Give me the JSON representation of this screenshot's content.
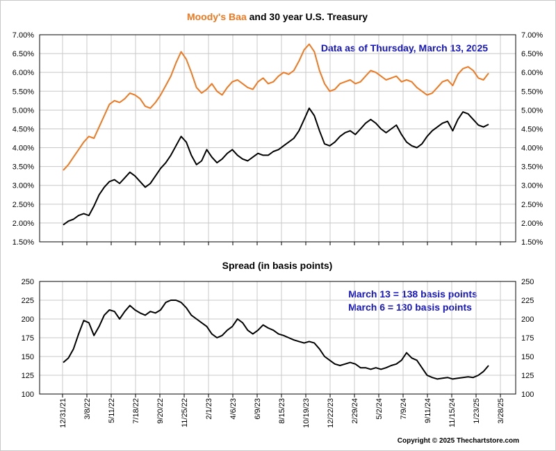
{
  "chart_data": [
    {
      "type": "line",
      "title_parts": {
        "highlight": "Moody's Baa",
        "rest": " and 30 year U.S. Treasury"
      },
      "annotation": "Data as of Thursday, March 13, 2025",
      "ylim": [
        1.5,
        7.0
      ],
      "yticks": [
        "1.50%",
        "2.00%",
        "2.50%",
        "3.00%",
        "3.50%",
        "4.00%",
        "4.50%",
        "5.00%",
        "5.50%",
        "6.00%",
        "6.50%",
        "7.00%"
      ],
      "grid": true,
      "colors": {
        "baa": "#f07820",
        "treasury": "#000000"
      },
      "series": [
        {
          "key": "baa",
          "values": [
            3.4,
            3.55,
            3.75,
            3.95,
            4.15,
            4.3,
            4.25,
            4.55,
            4.85,
            5.15,
            5.25,
            5.2,
            5.3,
            5.45,
            5.4,
            5.3,
            5.1,
            5.05,
            5.2,
            5.4,
            5.65,
            5.9,
            6.25,
            6.55,
            6.35,
            6.0,
            5.6,
            5.45,
            5.55,
            5.7,
            5.5,
            5.4,
            5.6,
            5.75,
            5.8,
            5.7,
            5.6,
            5.55,
            5.75,
            5.85,
            5.7,
            5.75,
            5.9,
            6.0,
            5.95,
            6.05,
            6.3,
            6.6,
            6.75,
            6.55,
            6.05,
            5.7,
            5.5,
            5.55,
            5.7,
            5.75,
            5.8,
            5.7,
            5.75,
            5.9,
            6.05,
            6.0,
            5.9,
            5.8,
            5.85,
            5.9,
            5.75,
            5.8,
            5.75,
            5.6,
            5.5,
            5.4,
            5.45,
            5.6,
            5.75,
            5.8,
            5.65,
            5.95,
            6.1,
            6.15,
            6.05,
            5.85,
            5.8,
            5.98
          ]
        },
        {
          "key": "treasury",
          "values": [
            1.95,
            2.05,
            2.1,
            2.2,
            2.25,
            2.2,
            2.45,
            2.75,
            2.95,
            3.1,
            3.15,
            3.05,
            3.2,
            3.35,
            3.25,
            3.1,
            2.95,
            3.05,
            3.25,
            3.45,
            3.6,
            3.8,
            4.05,
            4.3,
            4.15,
            3.8,
            3.55,
            3.65,
            3.95,
            3.75,
            3.6,
            3.7,
            3.85,
            3.95,
            3.8,
            3.7,
            3.65,
            3.75,
            3.85,
            3.8,
            3.8,
            3.9,
            3.95,
            4.05,
            4.15,
            4.25,
            4.45,
            4.75,
            5.05,
            4.85,
            4.45,
            4.1,
            4.05,
            4.15,
            4.3,
            4.4,
            4.45,
            4.35,
            4.5,
            4.65,
            4.75,
            4.65,
            4.5,
            4.4,
            4.5,
            4.6,
            4.35,
            4.15,
            4.05,
            4.0,
            4.1,
            4.3,
            4.45,
            4.55,
            4.65,
            4.7,
            4.45,
            4.75,
            4.95,
            4.9,
            4.75,
            4.6,
            4.55,
            4.62
          ]
        }
      ]
    },
    {
      "type": "line",
      "title": "Spread (in basis points)",
      "annotations": [
        "March 13 = 138 basis points",
        "March 6 = 130 basis points"
      ],
      "ylim": [
        100,
        250
      ],
      "yticks": [
        "100",
        "125",
        "150",
        "175",
        "200",
        "225",
        "250"
      ],
      "xticks": [
        "12/31/21",
        "3/8/22",
        "5/11/22",
        "7/18/22",
        "9/20/22",
        "11/25/22",
        "2/1/23",
        "4/6/23",
        "6/9/23",
        "8/15/23",
        "10/19/23",
        "12/22/23",
        "2/29/24",
        "5/2/24",
        "7/9/24",
        "9/11/24",
        "11/15/24",
        "1/23/25",
        "3/28/25"
      ],
      "grid": true,
      "series": [
        {
          "key": "spread",
          "values": [
            142,
            148,
            160,
            180,
            198,
            195,
            178,
            190,
            205,
            212,
            210,
            200,
            210,
            218,
            212,
            208,
            205,
            210,
            208,
            212,
            222,
            225,
            225,
            222,
            215,
            205,
            200,
            195,
            190,
            180,
            175,
            178,
            185,
            190,
            200,
            195,
            185,
            180,
            185,
            192,
            188,
            185,
            180,
            178,
            175,
            172,
            170,
            168,
            170,
            168,
            160,
            150,
            145,
            140,
            138,
            140,
            142,
            140,
            135,
            135,
            133,
            135,
            133,
            135,
            138,
            140,
            145,
            155,
            148,
            145,
            135,
            125,
            122,
            120,
            121,
            122,
            120,
            121,
            122,
            123,
            122,
            125,
            130,
            138
          ]
        }
      ]
    }
  ],
  "copyright": "Copyright © 2025 Thechartstore.com"
}
